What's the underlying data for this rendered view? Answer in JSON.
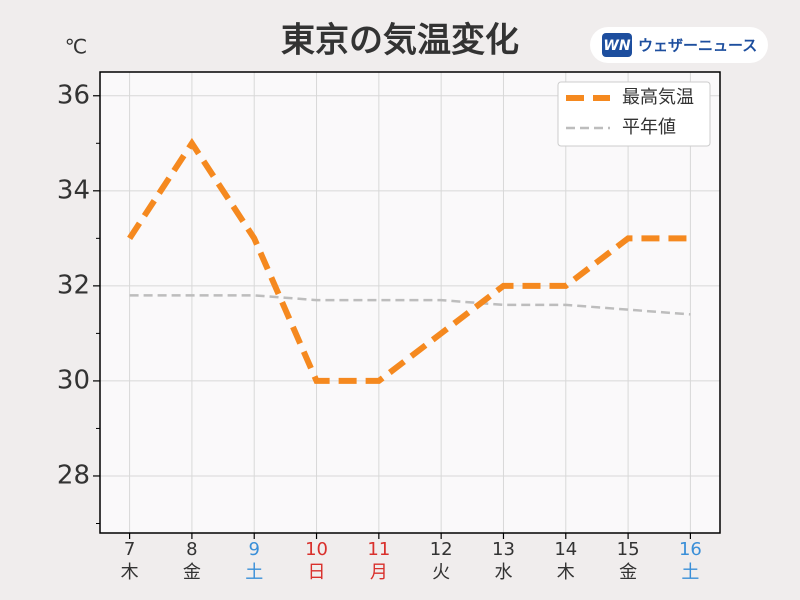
{
  "chart_data": {
    "type": "line",
    "title": "東京の気温変化",
    "y_unit": "℃",
    "categories": [
      "7",
      "8",
      "9",
      "10",
      "11",
      "12",
      "13",
      "14",
      "15",
      "16"
    ],
    "weekdays": [
      "木",
      "金",
      "土",
      "日",
      "月",
      "火",
      "水",
      "木",
      "金",
      "土"
    ],
    "category_colors": [
      "#333333",
      "#333333",
      "#3a8fd8",
      "#d9302c",
      "#d9302c",
      "#333333",
      "#333333",
      "#333333",
      "#333333",
      "#3a8fd8"
    ],
    "series": [
      {
        "name": "最高気温",
        "color": "#f5891f",
        "dash": "18,9",
        "width": 6,
        "values": [
          33,
          35,
          33,
          30,
          30,
          31,
          32,
          32,
          33,
          33
        ]
      },
      {
        "name": "平年値",
        "color": "#bdbdbd",
        "dash": "9,5",
        "width": 2.5,
        "values": [
          31.8,
          31.8,
          31.8,
          31.7,
          31.7,
          31.7,
          31.6,
          31.6,
          31.5,
          31.4
        ]
      }
    ],
    "ylim": [
      26.8,
      36.5
    ],
    "yticks": [
      28,
      30,
      32,
      34,
      36
    ],
    "yminorticks": [
      27,
      29,
      31,
      33,
      35
    ],
    "grid": true,
    "legend": "upper-right"
  },
  "logo": {
    "mark": "WN",
    "text": "ウェザーニュース"
  }
}
